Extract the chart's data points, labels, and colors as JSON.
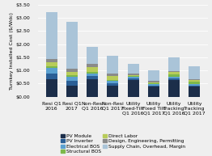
{
  "categories": [
    "Resi Q1\n2016",
    "Resi Q1\n2017",
    "Non-Resi\nQ1 2016",
    "Non-Resi\nQ1 2017",
    "Utility\nFixed-Tilt\nQ1 2016",
    "Utility\nFixed Tilt\nQ1 2017",
    "Utility\nTracking\nQ1 2016",
    "Utility\nTracking\nQ1 2017"
  ],
  "series_order": [
    "PV Module",
    "PV Inverter",
    "Electrical BOS",
    "Structural BOS",
    "Direct Labor",
    "Design, Engineering, Permitting",
    "Supply Chain, Overhead, Margin"
  ],
  "series": {
    "PV Module": [
      0.67,
      0.42,
      0.67,
      0.42,
      0.62,
      0.38,
      0.62,
      0.38
    ],
    "PV Inverter": [
      0.22,
      0.18,
      0.11,
      0.09,
      0.07,
      0.05,
      0.07,
      0.05
    ],
    "Electrical BOS": [
      0.2,
      0.17,
      0.1,
      0.08,
      0.06,
      0.05,
      0.06,
      0.05
    ],
    "Structural BOS": [
      0.06,
      0.05,
      0.06,
      0.05,
      0.03,
      0.03,
      0.1,
      0.08
    ],
    "Direct Labor": [
      0.16,
      0.13,
      0.2,
      0.15,
      0.05,
      0.04,
      0.08,
      0.06
    ],
    "Design, Engineering, Permitting": [
      0.12,
      0.1,
      0.11,
      0.09,
      0.04,
      0.04,
      0.05,
      0.04
    ],
    "Supply Chain, Overhead, Margin": [
      1.8,
      1.8,
      0.66,
      0.67,
      0.38,
      0.41,
      0.52,
      0.49
    ]
  },
  "colors": {
    "PV Module": "#1c2e4a",
    "PV Inverter": "#2b5f96",
    "Electrical BOS": "#5aa0d0",
    "Structural BOS": "#7db84a",
    "Direct Labor": "#b8cc5a",
    "Design, Engineering, Permitting": "#8a8a8a",
    "Supply Chain, Overhead, Margin": "#aac4d8"
  },
  "ylabel": "Turnkey Installed Cost ($/Wdc)",
  "ylim": [
    0.0,
    3.5
  ],
  "yticks": [
    0.0,
    0.5,
    1.0,
    1.5,
    2.0,
    2.5,
    3.0,
    3.5
  ],
  "ytick_labels": [
    "$0.00",
    "$0.50",
    "$1.00",
    "$1.50",
    "$2.00",
    "$2.50",
    "$3.00",
    "$3.50"
  ],
  "bg_color": "#efefef",
  "axis_fontsize": 4.5,
  "legend_fontsize": 4.2,
  "bar_width": 0.55
}
